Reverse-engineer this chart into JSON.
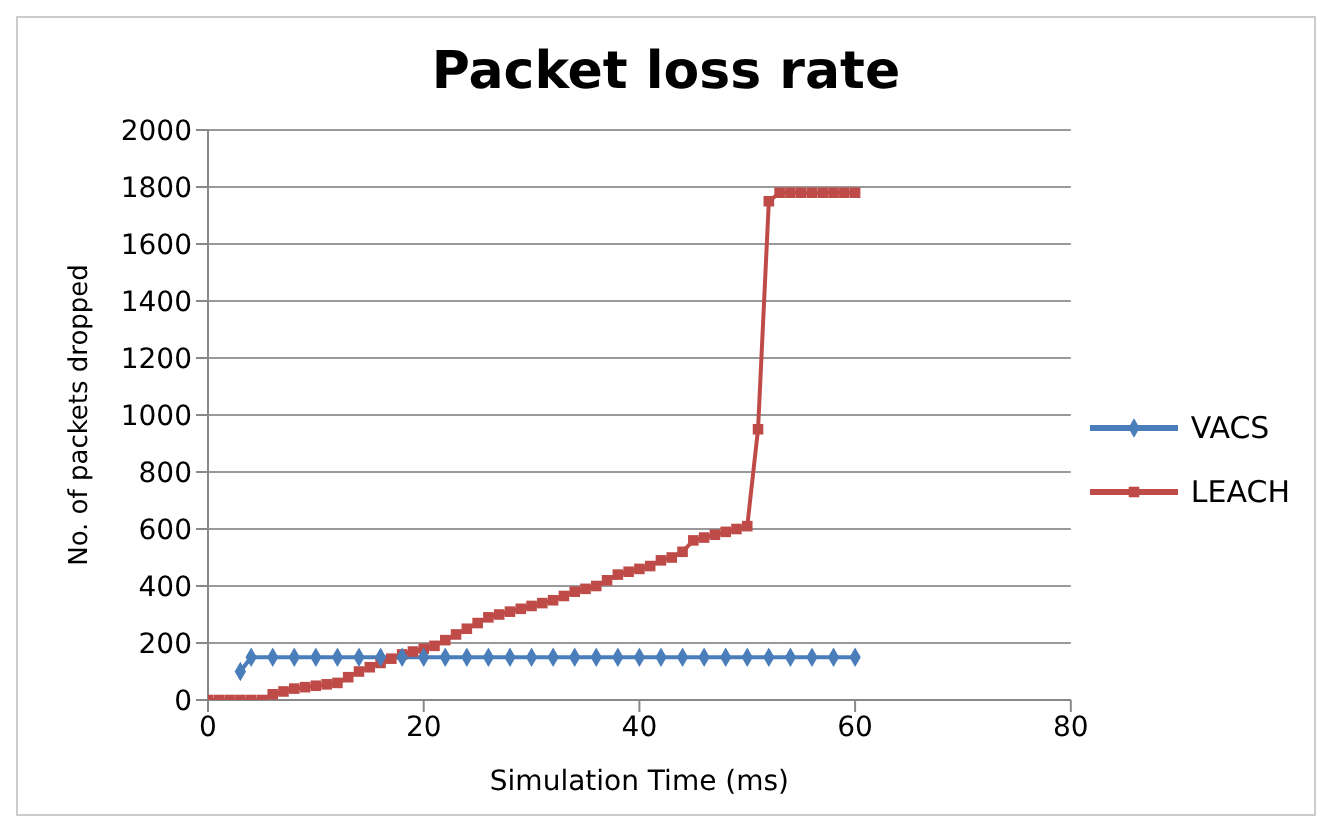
{
  "chart_data": {
    "type": "line",
    "title": "Packet loss rate",
    "xlabel": "Simulation Time (ms)",
    "ylabel": "No. of packets dropped",
    "xlim": [
      0,
      80
    ],
    "xticks": [
      0,
      20,
      40,
      60,
      80
    ],
    "ylim": [
      0,
      2000
    ],
    "yticks": [
      0,
      200,
      400,
      600,
      800,
      1000,
      1200,
      1400,
      1600,
      1800,
      2000
    ],
    "grid": "y",
    "legend": "right",
    "series": [
      {
        "name": "VACS",
        "color": "#4a7ebb",
        "marker": "diamond",
        "x": [
          3,
          4,
          6,
          8,
          10,
          12,
          14,
          16,
          18,
          20,
          22,
          24,
          26,
          28,
          30,
          32,
          34,
          36,
          38,
          40,
          42,
          44,
          46,
          48,
          50,
          52,
          54,
          56,
          58,
          60
        ],
        "values": [
          100,
          150,
          150,
          150,
          150,
          150,
          150,
          150,
          150,
          150,
          150,
          150,
          150,
          150,
          150,
          150,
          150,
          150,
          150,
          150,
          150,
          150,
          150,
          150,
          150,
          150,
          150,
          150,
          150,
          150
        ]
      },
      {
        "name": "LEACH",
        "color": "#be4b48",
        "marker": "square",
        "x": [
          0,
          1,
          2,
          3,
          4,
          5,
          6,
          7,
          8,
          9,
          10,
          11,
          12,
          13,
          14,
          15,
          16,
          17,
          18,
          19,
          20,
          21,
          22,
          23,
          24,
          25,
          26,
          27,
          28,
          29,
          30,
          31,
          32,
          33,
          34,
          35,
          36,
          37,
          38,
          39,
          40,
          41,
          42,
          43,
          44,
          45,
          46,
          47,
          48,
          49,
          50,
          51,
          52,
          53,
          54,
          55,
          56,
          57,
          58,
          59,
          60
        ],
        "values": [
          0,
          0,
          0,
          0,
          0,
          0,
          20,
          30,
          40,
          45,
          50,
          55,
          60,
          80,
          100,
          115,
          130,
          145,
          160,
          170,
          180,
          190,
          210,
          230,
          250,
          270,
          290,
          300,
          310,
          320,
          330,
          340,
          350,
          365,
          380,
          390,
          400,
          420,
          440,
          450,
          460,
          470,
          490,
          500,
          520,
          560,
          570,
          580,
          590,
          600,
          610,
          950,
          1750,
          1780,
          1780,
          1780,
          1780,
          1780,
          1780,
          1780,
          1780
        ]
      }
    ]
  }
}
